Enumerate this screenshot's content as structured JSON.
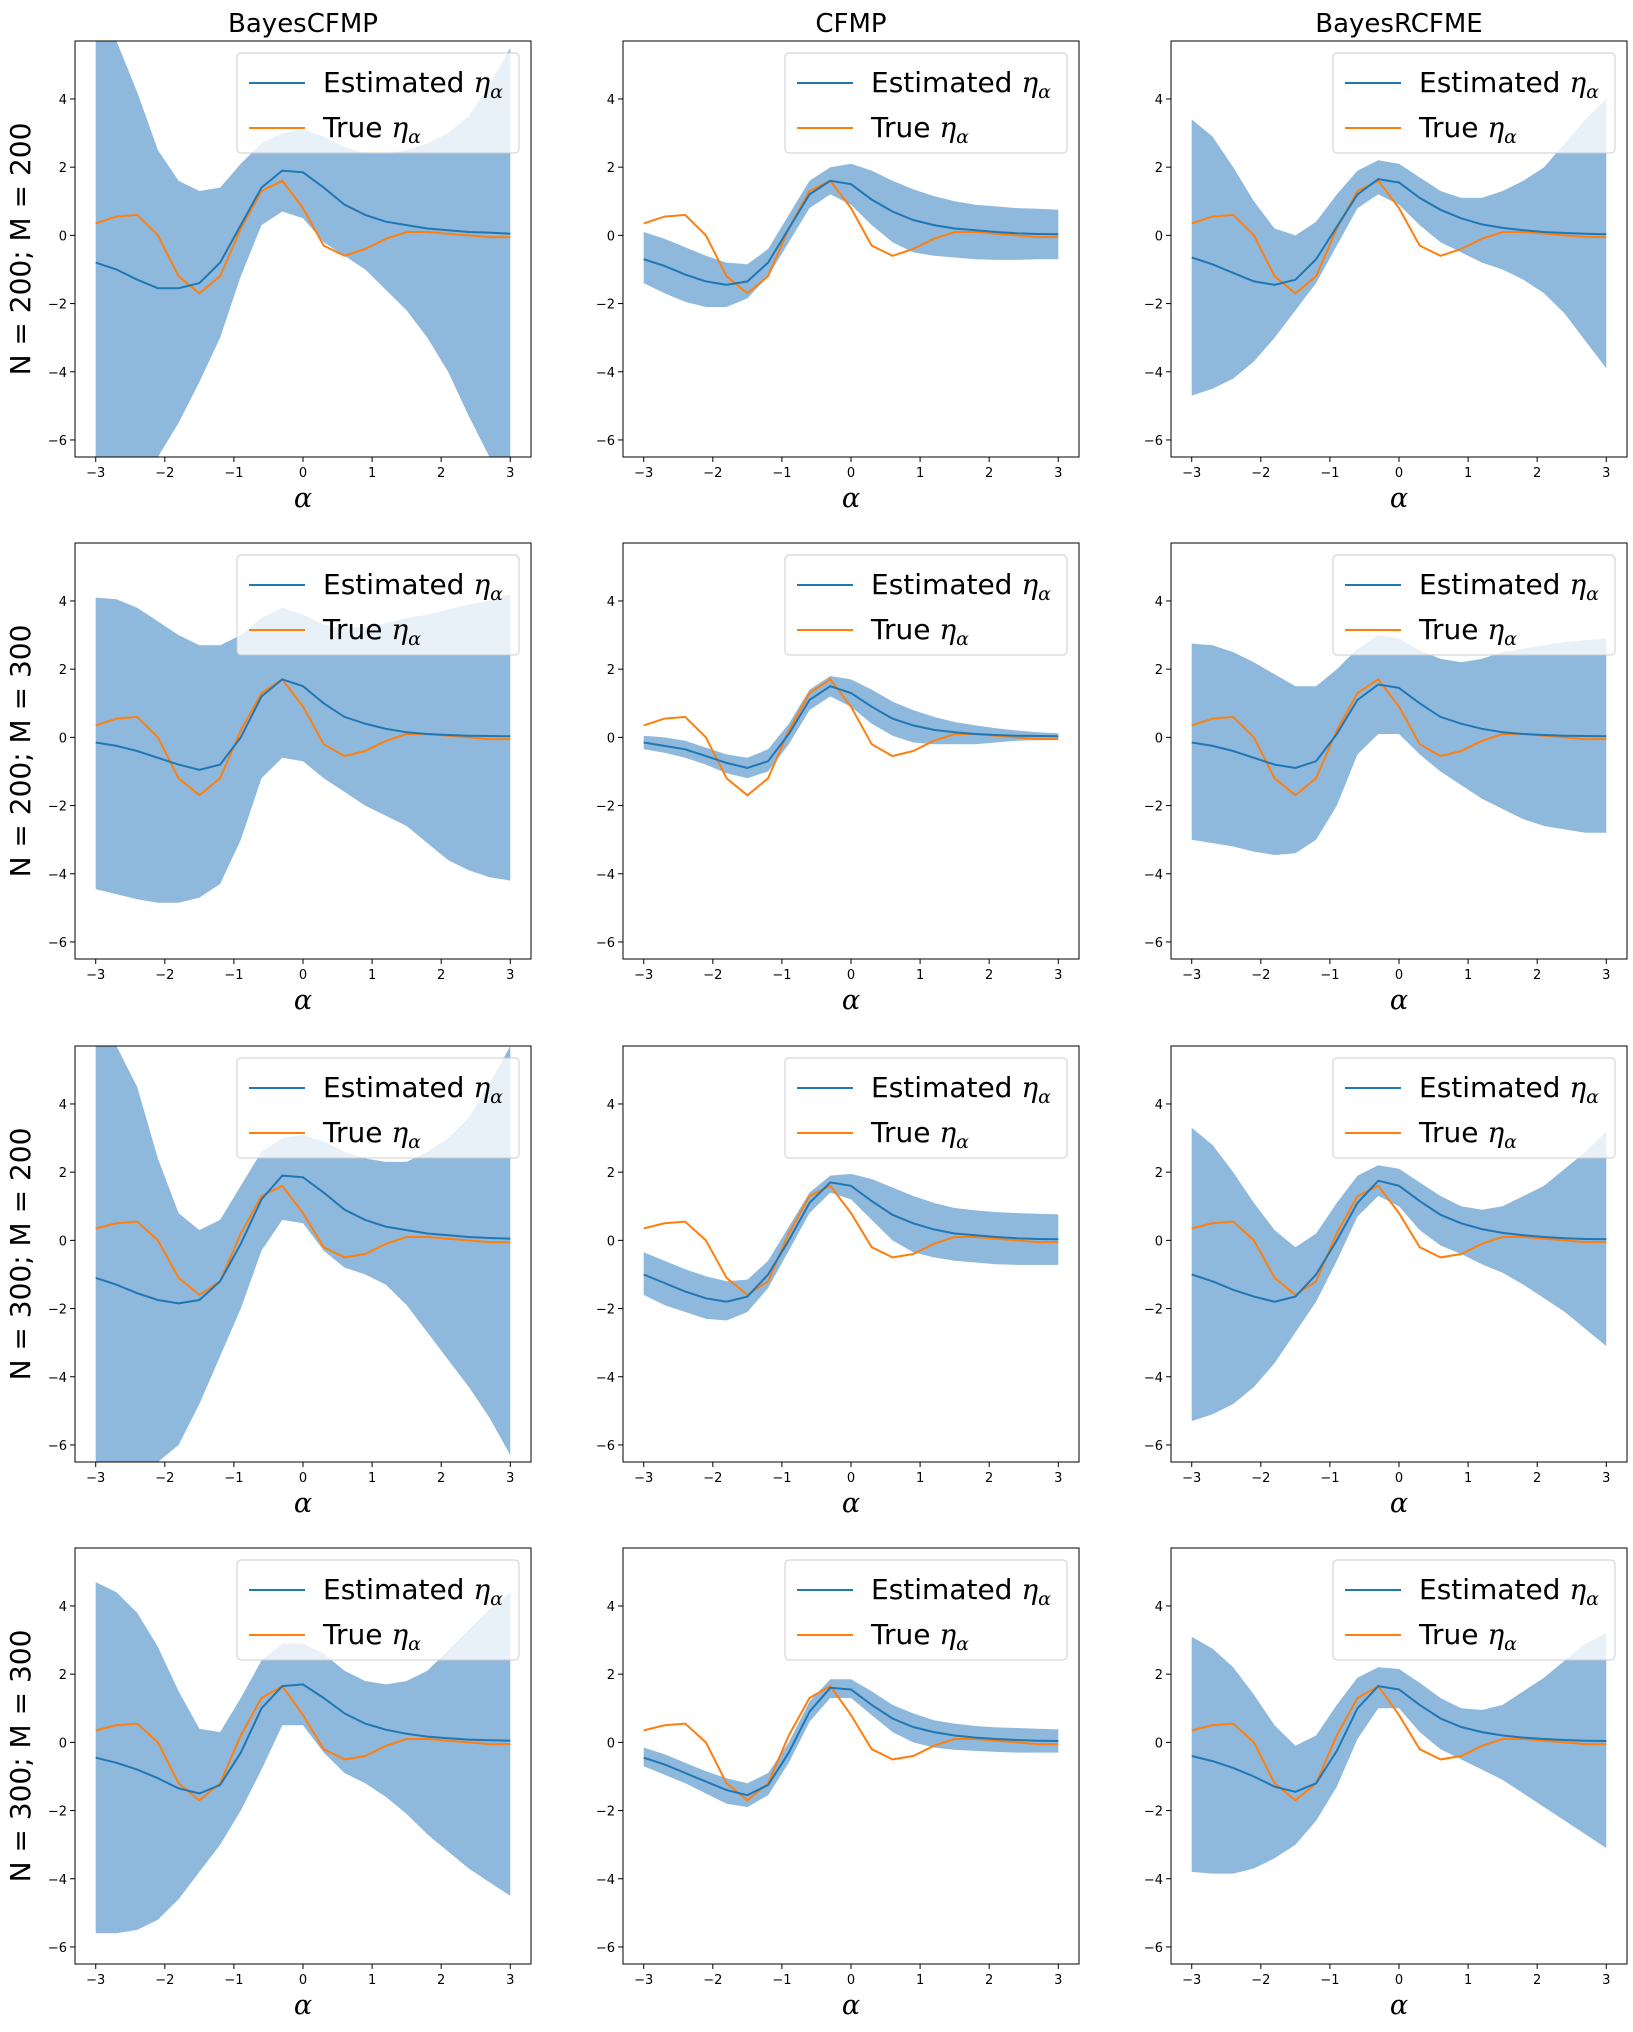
{
  "chart_data": {
    "type": "line",
    "columns": [
      "BayesCFMP",
      "CFMP",
      "BayesRCFME"
    ],
    "rows": [
      "N = 200; M = 200",
      "N = 200; M = 300",
      "N = 300; M = 200",
      "N = 300; M = 300"
    ],
    "xlabel": "α",
    "xlim": [
      -3.3,
      3.3
    ],
    "ylim": [
      -6.5,
      5.7
    ],
    "xticks": [
      -3,
      -2,
      -1,
      0,
      1,
      2,
      3
    ],
    "yticks": [
      -6,
      -4,
      -2,
      0,
      2,
      4
    ],
    "tick_labels_x": [
      "−3",
      "−2",
      "−1",
      "0",
      "1",
      "2",
      "3"
    ],
    "tick_labels_y": [
      "−6",
      "−4",
      "−2",
      "0",
      "2",
      "4"
    ],
    "legend": {
      "position": "top-right",
      "entries": [
        {
          "label": "Estimated",
          "symbol": "η",
          "subscript": "α",
          "color": "#1f77b4"
        },
        {
          "label": "True",
          "symbol": "η",
          "subscript": "α",
          "color": "#ff7f0e"
        }
      ]
    },
    "colors": {
      "estimated": "#1f77b4",
      "true": "#ff7f0e",
      "band": "#8fb9dc"
    },
    "x": [
      -3,
      -2.7,
      -2.4,
      -2.1,
      -1.8,
      -1.5,
      -1.2,
      -0.9,
      -0.6,
      -0.3,
      0,
      0.3,
      0.6,
      0.9,
      1.2,
      1.5,
      1.8,
      2.1,
      2.4,
      2.7,
      3
    ],
    "true_series": {
      "row0": [
        0.35,
        0.55,
        0.6,
        0.0,
        -1.2,
        -1.7,
        -1.2,
        0.2,
        1.3,
        1.6,
        0.8,
        -0.3,
        -0.6,
        -0.4,
        -0.1,
        0.1,
        0.1,
        0.05,
        0.0,
        -0.05,
        -0.05
      ],
      "row1": [
        0.35,
        0.55,
        0.6,
        0.0,
        -1.2,
        -1.7,
        -1.2,
        0.2,
        1.3,
        1.7,
        0.9,
        -0.2,
        -0.55,
        -0.4,
        -0.1,
        0.1,
        0.1,
        0.05,
        0.0,
        -0.05,
        -0.05
      ],
      "row2": [
        0.35,
        0.5,
        0.55,
        0.0,
        -1.1,
        -1.6,
        -1.2,
        0.2,
        1.3,
        1.6,
        0.8,
        -0.2,
        -0.5,
        -0.4,
        -0.1,
        0.1,
        0.1,
        0.05,
        0.0,
        -0.05,
        -0.05
      ],
      "row3": [
        0.35,
        0.5,
        0.55,
        0.0,
        -1.2,
        -1.7,
        -1.2,
        0.2,
        1.3,
        1.65,
        0.8,
        -0.2,
        -0.5,
        -0.4,
        -0.1,
        0.1,
        0.1,
        0.05,
        0.0,
        -0.05,
        -0.05
      ]
    },
    "panels": [
      [
        {
          "est": [
            -0.8,
            -1.0,
            -1.3,
            -1.55,
            -1.55,
            -1.4,
            -0.8,
            0.3,
            1.4,
            1.9,
            1.85,
            1.4,
            0.9,
            0.6,
            0.4,
            0.3,
            0.2,
            0.15,
            0.1,
            0.08,
            0.05
          ],
          "lower": [
            -6.5,
            -6.5,
            -6.5,
            -6.5,
            -5.5,
            -4.3,
            -3.0,
            -1.2,
            0.3,
            0.7,
            0.5,
            -0.2,
            -0.6,
            -1.0,
            -1.6,
            -2.2,
            -3.0,
            -4.0,
            -5.3,
            -6.5,
            -6.5
          ],
          "upper": [
            5.7,
            5.7,
            4.2,
            2.5,
            1.6,
            1.3,
            1.4,
            2.1,
            2.7,
            3.0,
            3.1,
            2.9,
            2.6,
            2.4,
            2.4,
            2.5,
            2.7,
            3.0,
            3.5,
            4.4,
            5.5
          ]
        },
        {
          "est": [
            -0.7,
            -0.9,
            -1.15,
            -1.35,
            -1.45,
            -1.35,
            -0.8,
            0.2,
            1.2,
            1.6,
            1.5,
            1.05,
            0.7,
            0.45,
            0.3,
            0.2,
            0.15,
            0.1,
            0.06,
            0.04,
            0.03
          ],
          "lower": [
            -1.4,
            -1.7,
            -1.95,
            -2.1,
            -2.1,
            -1.85,
            -1.2,
            -0.2,
            0.8,
            1.2,
            0.9,
            0.3,
            -0.2,
            -0.5,
            -0.6,
            -0.65,
            -0.7,
            -0.72,
            -0.72,
            -0.7,
            -0.7
          ],
          "upper": [
            0.1,
            -0.1,
            -0.35,
            -0.6,
            -0.8,
            -0.85,
            -0.4,
            0.6,
            1.6,
            2.0,
            2.1,
            1.9,
            1.6,
            1.35,
            1.15,
            1.0,
            0.9,
            0.85,
            0.8,
            0.78,
            0.75
          ]
        },
        {
          "est": [
            -0.65,
            -0.85,
            -1.1,
            -1.35,
            -1.45,
            -1.3,
            -0.7,
            0.25,
            1.2,
            1.65,
            1.55,
            1.1,
            0.75,
            0.5,
            0.32,
            0.22,
            0.15,
            0.1,
            0.07,
            0.05,
            0.03
          ],
          "lower": [
            -4.7,
            -4.5,
            -4.2,
            -3.7,
            -3.0,
            -2.2,
            -1.4,
            -0.3,
            0.8,
            1.2,
            0.9,
            0.3,
            -0.2,
            -0.5,
            -0.8,
            -1.0,
            -1.3,
            -1.7,
            -2.3,
            -3.1,
            -3.9
          ],
          "upper": [
            3.4,
            2.9,
            2.0,
            1.0,
            0.2,
            0.0,
            0.4,
            1.2,
            1.9,
            2.2,
            2.1,
            1.7,
            1.3,
            1.1,
            1.1,
            1.3,
            1.6,
            2.0,
            2.7,
            3.4,
            4.0
          ]
        }
      ],
      [
        {
          "est": [
            -0.15,
            -0.25,
            -0.4,
            -0.6,
            -0.8,
            -0.95,
            -0.8,
            0.0,
            1.2,
            1.7,
            1.5,
            1.0,
            0.6,
            0.4,
            0.25,
            0.15,
            0.1,
            0.07,
            0.05,
            0.04,
            0.03
          ],
          "lower": [
            -4.45,
            -4.6,
            -4.75,
            -4.85,
            -4.85,
            -4.7,
            -4.3,
            -3.0,
            -1.2,
            -0.6,
            -0.7,
            -1.2,
            -1.6,
            -2.0,
            -2.3,
            -2.6,
            -3.1,
            -3.6,
            -3.9,
            -4.1,
            -4.2
          ],
          "upper": [
            4.1,
            4.05,
            3.8,
            3.4,
            3.0,
            2.7,
            2.7,
            3.0,
            3.5,
            3.8,
            3.6,
            3.3,
            3.2,
            3.25,
            3.35,
            3.5,
            3.6,
            3.75,
            3.9,
            4.0,
            4.2
          ]
        },
        {
          "est": [
            -0.15,
            -0.25,
            -0.35,
            -0.55,
            -0.75,
            -0.9,
            -0.7,
            0.1,
            1.1,
            1.5,
            1.3,
            0.9,
            0.55,
            0.35,
            0.22,
            0.15,
            0.1,
            0.07,
            0.05,
            0.04,
            0.03
          ],
          "lower": [
            -0.35,
            -0.45,
            -0.6,
            -0.8,
            -1.05,
            -1.2,
            -1.0,
            -0.2,
            0.8,
            1.2,
            0.9,
            0.4,
            0.05,
            -0.15,
            -0.2,
            -0.2,
            -0.2,
            -0.15,
            -0.1,
            -0.08,
            -0.06
          ],
          "upper": [
            0.05,
            0.0,
            -0.1,
            -0.3,
            -0.5,
            -0.6,
            -0.35,
            0.4,
            1.4,
            1.8,
            1.7,
            1.4,
            1.05,
            0.8,
            0.6,
            0.45,
            0.35,
            0.27,
            0.2,
            0.15,
            0.12
          ]
        },
        {
          "est": [
            -0.15,
            -0.25,
            -0.4,
            -0.6,
            -0.8,
            -0.9,
            -0.7,
            0.1,
            1.1,
            1.55,
            1.45,
            1.0,
            0.6,
            0.4,
            0.25,
            0.15,
            0.1,
            0.07,
            0.05,
            0.04,
            0.03
          ],
          "lower": [
            -3.0,
            -3.1,
            -3.2,
            -3.35,
            -3.45,
            -3.4,
            -3.0,
            -2.0,
            -0.5,
            0.1,
            0.1,
            -0.5,
            -1.0,
            -1.4,
            -1.8,
            -2.1,
            -2.4,
            -2.6,
            -2.7,
            -2.8,
            -2.8
          ],
          "upper": [
            2.75,
            2.7,
            2.5,
            2.2,
            1.85,
            1.5,
            1.5,
            2.0,
            2.6,
            3.0,
            2.9,
            2.55,
            2.3,
            2.2,
            2.3,
            2.5,
            2.6,
            2.7,
            2.8,
            2.85,
            2.9
          ]
        }
      ],
      [
        {
          "est": [
            -1.1,
            -1.3,
            -1.55,
            -1.75,
            -1.85,
            -1.75,
            -1.2,
            -0.1,
            1.2,
            1.9,
            1.85,
            1.4,
            0.9,
            0.6,
            0.4,
            0.3,
            0.2,
            0.15,
            0.1,
            0.07,
            0.05
          ],
          "lower": [
            -6.5,
            -6.5,
            -6.5,
            -6.5,
            -6.0,
            -4.8,
            -3.4,
            -2.0,
            -0.3,
            0.6,
            0.5,
            -0.3,
            -0.8,
            -1.0,
            -1.3,
            -1.9,
            -2.7,
            -3.5,
            -4.3,
            -5.2,
            -6.3
          ],
          "upper": [
            5.7,
            5.7,
            4.5,
            2.4,
            0.8,
            0.3,
            0.6,
            1.6,
            2.6,
            3.0,
            3.1,
            2.9,
            2.6,
            2.4,
            2.3,
            2.3,
            2.6,
            3.0,
            3.6,
            4.6,
            5.7
          ]
        },
        {
          "est": [
            -1.0,
            -1.25,
            -1.5,
            -1.7,
            -1.8,
            -1.65,
            -1.0,
            0.0,
            1.1,
            1.7,
            1.6,
            1.15,
            0.75,
            0.5,
            0.32,
            0.2,
            0.15,
            0.1,
            0.06,
            0.04,
            0.03
          ],
          "lower": [
            -1.6,
            -1.9,
            -2.1,
            -2.3,
            -2.35,
            -2.1,
            -1.4,
            -0.3,
            0.8,
            1.4,
            1.2,
            0.6,
            0.0,
            -0.35,
            -0.5,
            -0.6,
            -0.65,
            -0.7,
            -0.72,
            -0.72,
            -0.72
          ],
          "upper": [
            -0.35,
            -0.6,
            -0.85,
            -1.05,
            -1.2,
            -1.15,
            -0.6,
            0.4,
            1.4,
            1.9,
            1.95,
            1.8,
            1.55,
            1.3,
            1.1,
            0.95,
            0.88,
            0.83,
            0.8,
            0.78,
            0.76
          ]
        },
        {
          "est": [
            -1.0,
            -1.2,
            -1.45,
            -1.65,
            -1.8,
            -1.65,
            -1.0,
            0.0,
            1.1,
            1.75,
            1.6,
            1.15,
            0.75,
            0.5,
            0.33,
            0.22,
            0.15,
            0.1,
            0.06,
            0.04,
            0.03
          ],
          "lower": [
            -5.3,
            -5.1,
            -4.8,
            -4.3,
            -3.6,
            -2.7,
            -1.8,
            -0.6,
            0.7,
            1.3,
            1.0,
            0.3,
            -0.15,
            -0.4,
            -0.7,
            -0.95,
            -1.3,
            -1.7,
            -2.1,
            -2.6,
            -3.1
          ],
          "upper": [
            3.3,
            2.8,
            2.0,
            1.1,
            0.3,
            -0.2,
            0.2,
            1.1,
            1.9,
            2.2,
            2.1,
            1.7,
            1.3,
            1.0,
            0.9,
            1.0,
            1.3,
            1.6,
            2.1,
            2.6,
            3.2
          ]
        }
      ],
      [
        {
          "est": [
            -0.45,
            -0.6,
            -0.8,
            -1.05,
            -1.35,
            -1.5,
            -1.25,
            -0.3,
            1.0,
            1.65,
            1.7,
            1.3,
            0.85,
            0.55,
            0.37,
            0.25,
            0.17,
            0.12,
            0.08,
            0.06,
            0.05
          ],
          "lower": [
            -5.6,
            -5.6,
            -5.5,
            -5.2,
            -4.6,
            -3.8,
            -3.0,
            -2.0,
            -0.8,
            0.5,
            0.5,
            -0.3,
            -0.9,
            -1.2,
            -1.6,
            -2.1,
            -2.7,
            -3.2,
            -3.7,
            -4.1,
            -4.5
          ],
          "upper": [
            4.7,
            4.4,
            3.8,
            2.8,
            1.5,
            0.4,
            0.3,
            1.3,
            2.4,
            2.9,
            2.9,
            2.6,
            2.1,
            1.8,
            1.7,
            1.8,
            2.1,
            2.7,
            3.3,
            3.9,
            4.4
          ]
        },
        {
          "est": [
            -0.45,
            -0.65,
            -0.9,
            -1.15,
            -1.4,
            -1.55,
            -1.25,
            -0.3,
            0.9,
            1.6,
            1.55,
            1.1,
            0.7,
            0.45,
            0.3,
            0.2,
            0.14,
            0.1,
            0.07,
            0.05,
            0.04
          ],
          "lower": [
            -0.7,
            -0.95,
            -1.2,
            -1.5,
            -1.8,
            -1.9,
            -1.55,
            -0.6,
            0.6,
            1.3,
            1.3,
            0.8,
            0.3,
            0.0,
            -0.15,
            -0.22,
            -0.25,
            -0.28,
            -0.3,
            -0.3,
            -0.3
          ],
          "upper": [
            -0.15,
            -0.35,
            -0.6,
            -0.85,
            -1.05,
            -1.2,
            -0.9,
            0.0,
            1.2,
            1.85,
            1.85,
            1.5,
            1.1,
            0.85,
            0.65,
            0.55,
            0.48,
            0.44,
            0.42,
            0.4,
            0.38
          ]
        },
        {
          "est": [
            -0.4,
            -0.55,
            -0.75,
            -1.0,
            -1.3,
            -1.45,
            -1.2,
            -0.25,
            1.0,
            1.65,
            1.55,
            1.1,
            0.7,
            0.45,
            0.3,
            0.2,
            0.14,
            0.1,
            0.07,
            0.05,
            0.04
          ],
          "lower": [
            -3.8,
            -3.85,
            -3.85,
            -3.7,
            -3.4,
            -3.0,
            -2.3,
            -1.3,
            0.1,
            1.0,
            1.0,
            0.3,
            -0.2,
            -0.5,
            -0.8,
            -1.1,
            -1.5,
            -1.9,
            -2.3,
            -2.7,
            -3.1
          ],
          "upper": [
            3.1,
            2.75,
            2.2,
            1.4,
            0.5,
            -0.1,
            0.2,
            1.1,
            1.9,
            2.2,
            2.15,
            1.75,
            1.3,
            1.0,
            0.95,
            1.1,
            1.5,
            1.9,
            2.4,
            2.9,
            3.2
          ]
        }
      ]
    ]
  }
}
